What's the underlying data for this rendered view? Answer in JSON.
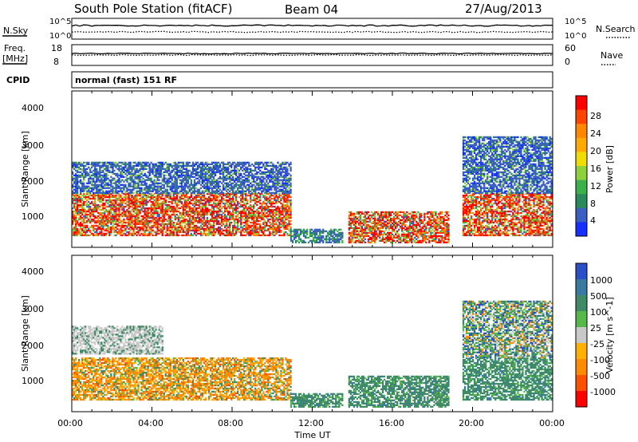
{
  "header": {
    "station": "South Pole Station (fitACF)",
    "beam": "Beam 04",
    "date": "27/Aug/2013"
  },
  "panels": {
    "nsky_label": "N.Sky",
    "nsky_ticks": [
      "10^5",
      "10^0"
    ],
    "nsearch_label": "N.Search",
    "nsearch_ticks": [
      "10^5",
      "10^0"
    ],
    "freq_label": "Freq.",
    "freq_unit": "[MHz]",
    "freq_ticks": [
      "18",
      "8"
    ],
    "nave_label": "Nave",
    "nave_ticks": [
      "60",
      "0"
    ],
    "cpid_label": "CPID",
    "cpid_text": "normal (fast) 151 RF"
  },
  "chart_data": [
    {
      "type": "heatmap",
      "parameter": "Power",
      "ylabel": "Slant Range [km]",
      "yticks": [
        "4000",
        "3000",
        "2000",
        "1000"
      ],
      "ylim": [
        180,
        4600
      ],
      "xlabel": "Time UT",
      "xticks": [
        "00:00",
        "04:00",
        "08:00",
        "12:00",
        "16:00",
        "20:00",
        "00:00"
      ],
      "colorbar_label": "Power [dB]",
      "colorbar_ticks": [
        "28",
        "24",
        "20",
        "16",
        "12",
        "8",
        "4"
      ],
      "colorbar_colors": [
        "#ff0000",
        "#ff4400",
        "#ff8800",
        "#ffaa00",
        "#f0dc00",
        "#8fd13c",
        "#3cb04a",
        "#2a8a5c",
        "#3a5fc0",
        "#1530ff"
      ],
      "regions": [
        {
          "t0": 0.0,
          "t1": 10.9,
          "r0": 500,
          "r1": 1700,
          "level": "high"
        },
        {
          "t0": 0.0,
          "t1": 10.9,
          "r0": 1700,
          "r1": 2600,
          "level": "low"
        },
        {
          "t0": 10.9,
          "t1": 13.5,
          "r0": 300,
          "r1": 700,
          "level": "mid"
        },
        {
          "t0": 13.8,
          "t1": 18.8,
          "r0": 300,
          "r1": 1200,
          "level": "high"
        },
        {
          "t0": 19.5,
          "t1": 24.0,
          "r0": 500,
          "r1": 1700,
          "level": "high"
        },
        {
          "t0": 19.5,
          "t1": 24.0,
          "r0": 1700,
          "r1": 3300,
          "level": "low"
        }
      ]
    },
    {
      "type": "heatmap",
      "parameter": "Velocity",
      "ylabel": "Slant Range [km]",
      "yticks": [
        "4000",
        "3000",
        "2000",
        "1000"
      ],
      "ylim": [
        180,
        4600
      ],
      "xlabel": "Time UT",
      "xticks": [
        "00:00",
        "04:00",
        "08:00",
        "12:00",
        "16:00",
        "20:00",
        "00:00"
      ],
      "colorbar_label": "Velocity [m s^-1]",
      "colorbar_ticks": [
        "1000",
        "500",
        "100",
        "25",
        "-25",
        "-100",
        "-500",
        "-1000"
      ],
      "colorbar_colors": [
        "#2a50c8",
        "#3a7aa0",
        "#3f8a66",
        "#56b84a",
        "#c8c8c8",
        "#ffb000",
        "#ff8c00",
        "#ff5000",
        "#ff0000"
      ],
      "regions": [
        {
          "t0": 0.0,
          "t1": 10.9,
          "r0": 500,
          "r1": 1700,
          "level": "neg"
        },
        {
          "t0": 0.0,
          "t1": 4.5,
          "r0": 1800,
          "r1": 2600,
          "level": "zero"
        },
        {
          "t0": 10.9,
          "t1": 13.5,
          "r0": 300,
          "r1": 700,
          "level": "pos"
        },
        {
          "t0": 13.8,
          "t1": 18.8,
          "r0": 300,
          "r1": 1200,
          "level": "pos"
        },
        {
          "t0": 19.5,
          "t1": 24.0,
          "r0": 500,
          "r1": 1700,
          "level": "pos"
        },
        {
          "t0": 19.5,
          "t1": 24.0,
          "r0": 1700,
          "r1": 3300,
          "level": "mixed"
        }
      ]
    }
  ]
}
